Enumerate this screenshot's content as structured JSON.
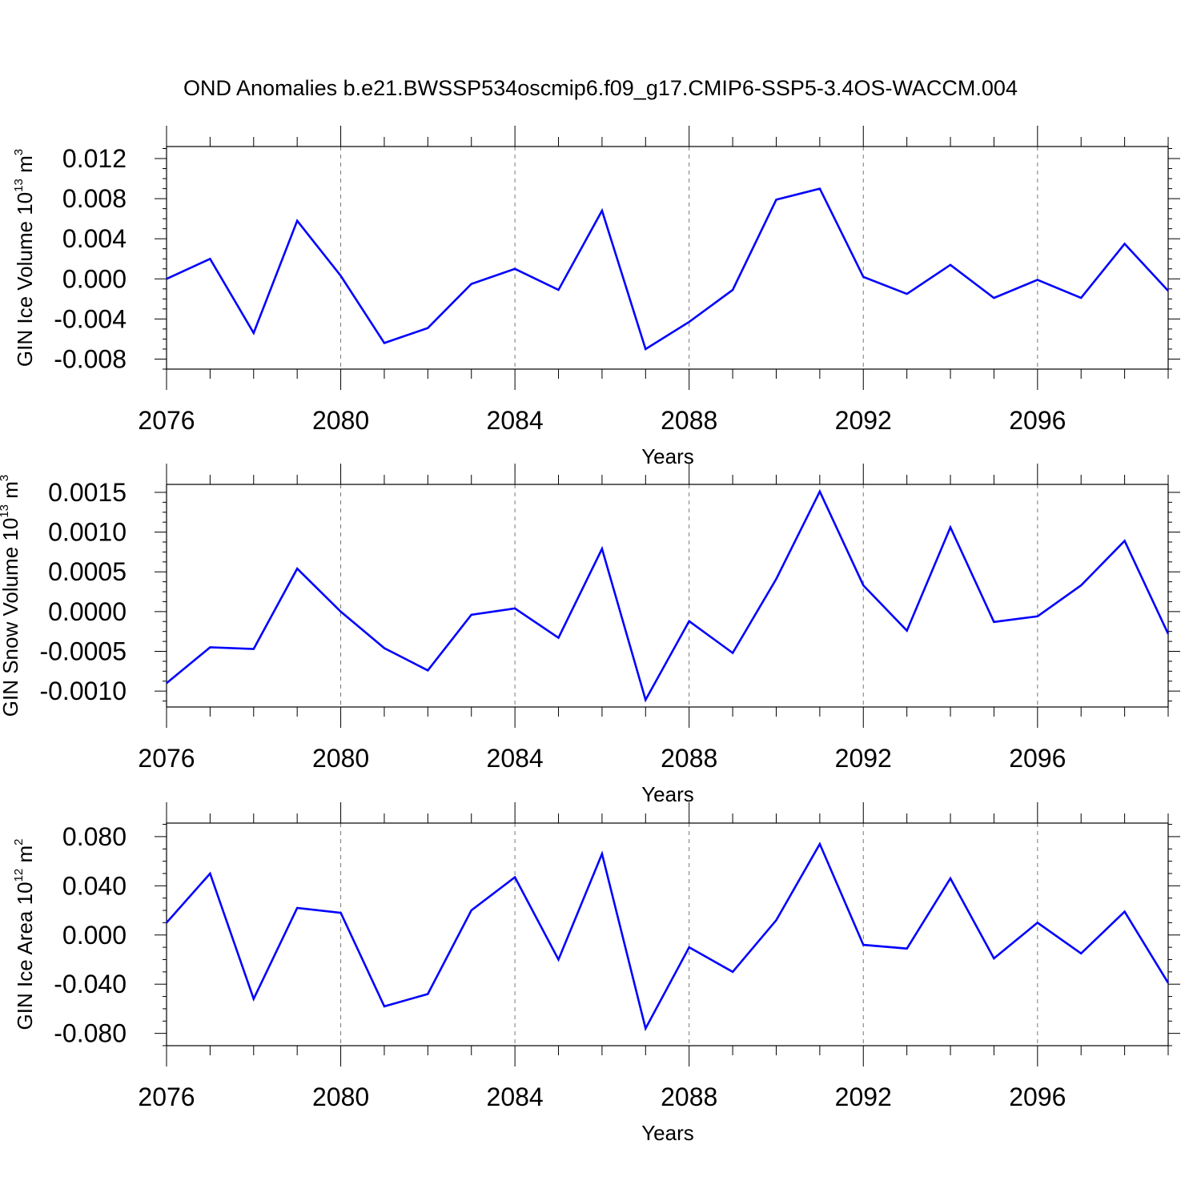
{
  "title": "OND Anomalies b.e21.BWSSP534oscmip6.f09_g17.CMIP6-SSP5-3.4OS-WACCM.004",
  "colors": {
    "series": "#0000ff",
    "frame": "#000000",
    "grid": "#777777"
  },
  "chart_data": [
    {
      "type": "line",
      "xlabel": "Years",
      "ylabel": {
        "text": "GIN Ice Volume 10",
        "exp": "13",
        "unit": " m",
        "unit_exp": "3"
      },
      "xlim": [
        2076,
        2099
      ],
      "ylim": [
        -0.009,
        0.0132
      ],
      "xticks": [
        "2076",
        "2080",
        "2084",
        "2088",
        "2092",
        "2096"
      ],
      "yticks": [
        "0.012",
        "0.008",
        "0.004",
        "0.000",
        "-0.004",
        "-0.008"
      ],
      "grid": "vertical dashed at major x ticks",
      "x": [
        2076,
        2077,
        2078,
        2079,
        2080,
        2081,
        2082,
        2083,
        2084,
        2085,
        2086,
        2087,
        2088,
        2089,
        2090,
        2091,
        2092,
        2093,
        2094,
        2095,
        2096,
        2097,
        2098,
        2099
      ],
      "values": [
        0.0,
        0.002,
        -0.0054,
        0.0058,
        0.0003,
        -0.0064,
        -0.0049,
        -0.0005,
        0.001,
        -0.0011,
        0.0068,
        -0.007,
        -0.0043,
        -0.0011,
        0.0079,
        0.009,
        0.0002,
        -0.0015,
        0.0014,
        -0.0019,
        -0.0001,
        -0.0019,
        0.0035,
        -0.0012
      ]
    },
    {
      "type": "line",
      "xlabel": "Years",
      "ylabel": {
        "text": "GIN Snow Volume 10",
        "exp": "13",
        "unit": " m",
        "unit_exp": "3"
      },
      "xlim": [
        2076,
        2099
      ],
      "ylim": [
        -0.0012,
        0.0016
      ],
      "xticks": [
        "2076",
        "2080",
        "2084",
        "2088",
        "2092",
        "2096"
      ],
      "yticks": [
        "0.0015",
        "0.0010",
        "0.0005",
        "0.0000",
        "-0.0005",
        "-0.0010"
      ],
      "grid": "vertical dashed at major x ticks",
      "x": [
        2076,
        2077,
        2078,
        2079,
        2080,
        2081,
        2082,
        2083,
        2084,
        2085,
        2086,
        2087,
        2088,
        2089,
        2090,
        2091,
        2092,
        2093,
        2094,
        2095,
        2096,
        2097,
        2098,
        2099
      ],
      "values": [
        -0.0009,
        -0.00045,
        -0.00047,
        0.00054,
        0.0,
        -0.00046,
        -0.00074,
        -4e-05,
        4e-05,
        -0.00033,
        0.00079,
        -0.00111,
        -0.00012,
        -0.00052,
        0.00041,
        0.00151,
        0.00033,
        -0.00024,
        0.00106,
        -0.00013,
        -6e-05,
        0.00033,
        0.00089,
        -0.00028
      ]
    },
    {
      "type": "line",
      "xlabel": "Years",
      "ylabel": {
        "text": "GIN Ice Area 10",
        "exp": "12",
        "unit": " m",
        "unit_exp": "2"
      },
      "xlim": [
        2076,
        2099
      ],
      "ylim": [
        -0.09,
        0.091
      ],
      "xticks": [
        "2076",
        "2080",
        "2084",
        "2088",
        "2092",
        "2096"
      ],
      "yticks": [
        "0.080",
        "0.040",
        "0.000",
        "-0.040",
        "-0.080"
      ],
      "grid": "vertical dashed at major x ticks",
      "x": [
        2076,
        2077,
        2078,
        2079,
        2080,
        2081,
        2082,
        2083,
        2084,
        2085,
        2086,
        2087,
        2088,
        2089,
        2090,
        2091,
        2092,
        2093,
        2094,
        2095,
        2096,
        2097,
        2098,
        2099
      ],
      "values": [
        0.01,
        0.05,
        -0.052,
        0.022,
        0.018,
        -0.058,
        -0.048,
        0.02,
        0.047,
        -0.02,
        0.066,
        -0.076,
        -0.01,
        -0.03,
        0.012,
        0.074,
        -0.008,
        -0.011,
        0.046,
        -0.019,
        0.01,
        -0.015,
        0.019,
        -0.039
      ]
    }
  ]
}
